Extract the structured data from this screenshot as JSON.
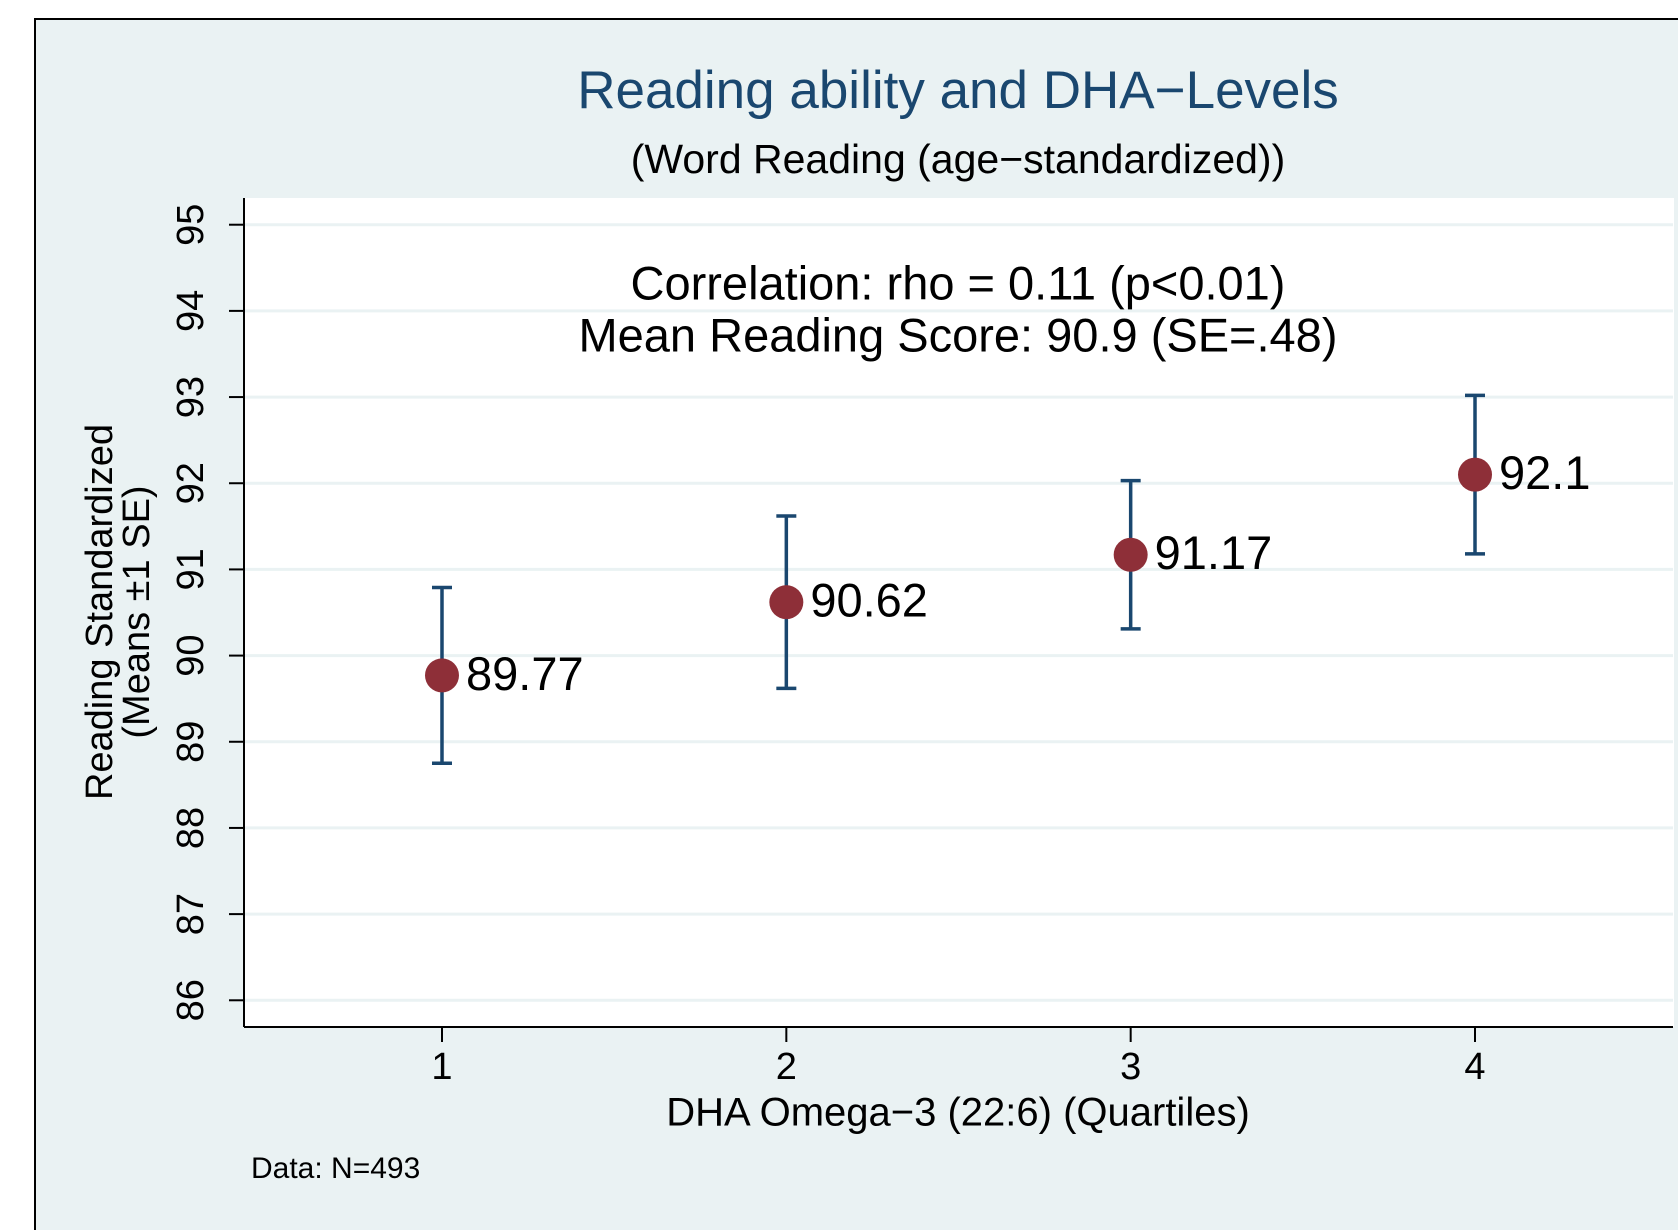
{
  "chart_data": {
    "type": "scatter",
    "title": "Reading ability and DHA−Levels",
    "subtitle": "(Word Reading (age−standardized))",
    "annotations": [
      "Correlation: rho = 0.11 (p<0.01)",
      "Mean Reading Score: 90.9 (SE=.48)"
    ],
    "y_label": [
      "Reading Standardized",
      "(Means ±1 SE)"
    ],
    "x_label": "DHA Omega−3 (22:6) (Quartiles)",
    "note": "Data: N=493",
    "x": [
      1,
      2,
      3,
      4
    ],
    "values": [
      89.77,
      90.62,
      91.17,
      92.1
    ],
    "errors": [
      1.02,
      1.0,
      0.86,
      0.92
    ],
    "color": "#8e2f38",
    "error_color": "#1a476f",
    "xlim": [
      0.425,
      4.575
    ],
    "xticks": [
      1,
      2,
      3,
      4
    ],
    "ylim": [
      85.69,
      95.31
    ],
    "yticks": [
      86,
      87,
      88,
      89,
      90,
      91,
      92,
      93,
      94,
      95
    ],
    "grid": true
  }
}
